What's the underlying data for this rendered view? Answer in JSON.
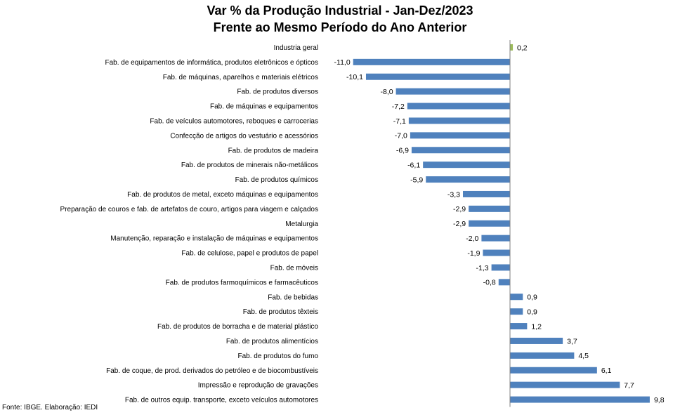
{
  "chart_data": {
    "type": "bar",
    "orientation": "horizontal",
    "title": "Var % da Produção Industrial - Jan-Dez/2023",
    "subtitle": "Frente ao Mesmo Período do Ano Anterior",
    "categories": [
      "Industria geral",
      "Fab. de equipamentos de informática, produtos eletrônicos e ópticos",
      "Fab. de máquinas, aparelhos e materiais elétricos",
      "Fab. de produtos diversos",
      "Fab. de máquinas e equipamentos",
      "Fab. de veículos automotores, reboques e carrocerias",
      "Confecção de artigos do vestuário e acessórios",
      "Fab. de produtos de madeira",
      "Fab. de produtos de minerais não-metálicos",
      "Fab. de produtos químicos",
      "Fab. de produtos de metal, exceto máquinas e equipamentos",
      "Preparação de couros e fab. de artefatos de couro, artigos para viagem e calçados",
      "Metalurgia",
      "Manutenção, reparação e instalação de máquinas e equipamentos",
      "Fab. de celulose, papel e produtos de papel",
      "Fab. de móveis",
      "Fab. de produtos farmoquímicos e farmacêuticos",
      "Fab. de bebidas",
      "Fab. de produtos têxteis",
      "Fab. de produtos de borracha e de material plástico",
      "Fab. de produtos alimentícios",
      "Fab. de produtos do fumo",
      "Fab. de coque, de prod. derivados do petróleo e de biocombustíveis",
      "Impressão e reprodução de gravações",
      "Fab. de outros equip. transporte, exceto veículos automotores"
    ],
    "values": [
      0.2,
      -11.0,
      -10.1,
      -8.0,
      -7.2,
      -7.1,
      -7.0,
      -6.9,
      -6.1,
      -5.9,
      -3.3,
      -2.9,
      -2.9,
      -2.0,
      -1.9,
      -1.3,
      -0.8,
      0.9,
      0.9,
      1.2,
      3.7,
      4.5,
      6.1,
      7.7,
      9.8
    ],
    "value_labels": [
      "0,2",
      "-11,0",
      "-10,1",
      "-8,0",
      "-7,2",
      "-7,1",
      "-7,0",
      "-6,9",
      "-6,1",
      "-5,9",
      "-3,3",
      "-2,9",
      "-2,9",
      "-2,0",
      "-1,9",
      "-1,3",
      "-0,8",
      "0,9",
      "0,9",
      "1,2",
      "3,7",
      "4,5",
      "6,1",
      "7,7",
      "9,8"
    ],
    "highlight_index": 0,
    "colors": {
      "bar": "#4f81bd",
      "highlight": "#9bbb59",
      "axis": "#808080"
    },
    "grid": false,
    "legend": "none"
  },
  "source": "Fonte: IBGE. Elaboração: IEDI"
}
